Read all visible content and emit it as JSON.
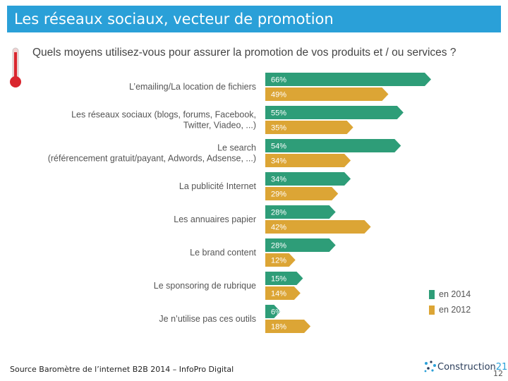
{
  "slide": {
    "title": "Les réseaux sociaux, vecteur de promotion",
    "source": "Source Baromètre de l’internet B2B 2014 – InfoPro Digital",
    "page_number": "12",
    "logo_text": "Construction",
    "logo_number": "21"
  },
  "colors": {
    "title_bar": "#2aa0d8",
    "series_2014": "#2e9d78",
    "series_2012": "#dca535",
    "thermometer": "#d9262e"
  },
  "chart_data": {
    "type": "bar",
    "orientation": "horizontal",
    "title": "Quels moyens utilisez-vous pour assurer la promotion de vos produits et / ou services ?",
    "categories": [
      [
        "L’emailing/La location de fichiers"
      ],
      [
        "Les réseaux sociaux (blogs, forums, Facebook,",
        "Twitter, Viadeo, ...)"
      ],
      [
        "Le search",
        "(référencement gratuit/payant, Adwords, Adsense, ...)"
      ],
      [
        "La publicité Internet"
      ],
      [
        "Les annuaires papier"
      ],
      [
        "Le brand content"
      ],
      [
        "Le sponsoring de rubrique"
      ],
      [
        "Je n’utilise pas ces outils"
      ]
    ],
    "series": [
      {
        "name": "en 2014",
        "values": [
          66,
          55,
          54,
          34,
          28,
          28,
          15,
          6
        ],
        "labels": [
          "66%",
          "55%",
          "54%",
          "34%",
          "28%",
          "28%",
          "15%",
          "6%"
        ]
      },
      {
        "name": "en 2012",
        "values": [
          49,
          35,
          34,
          29,
          42,
          12,
          14,
          18
        ],
        "labels": [
          "49%",
          "35%",
          "34%",
          "29%",
          "42%",
          "12%",
          "14%",
          "18%"
        ]
      }
    ],
    "legend_position": "bottom-right",
    "grid": false,
    "xlim": [
      0,
      66
    ]
  }
}
